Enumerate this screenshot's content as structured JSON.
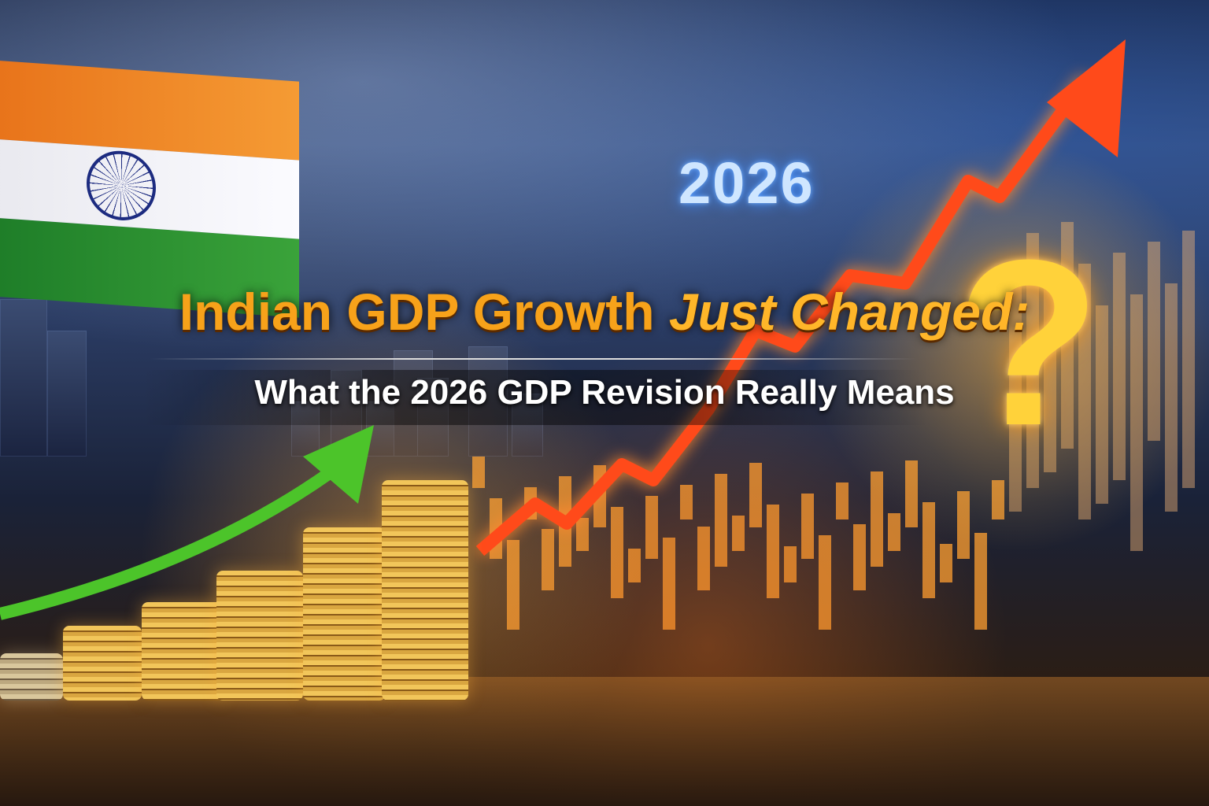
{
  "title": {
    "part1": "Indian GDP Growth ",
    "part2": "Just Changed:"
  },
  "subtitle": "What the 2026 GDP Revision Really Means",
  "year_label": "2026",
  "question_mark": "?",
  "colors": {
    "title": "#f7a21a",
    "subtitle": "#ffffff",
    "green_arrow": "#4cc42a",
    "red_arrow": "#ff4a1a",
    "question_mark": "#ffd23a"
  }
}
